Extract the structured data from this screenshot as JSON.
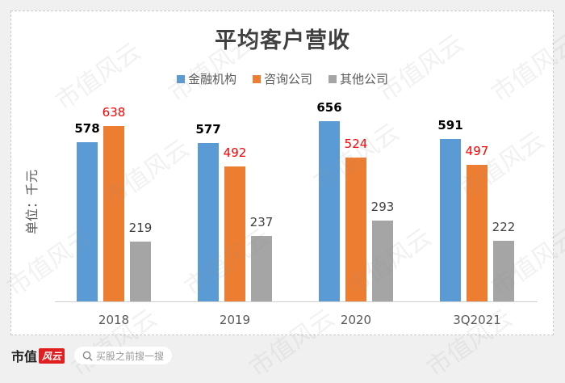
{
  "chart_data": {
    "type": "bar",
    "title": "平均客户营收",
    "ylabel": "单位：千元",
    "xlabel": "",
    "categories": [
      "2018",
      "2019",
      "2020",
      "3Q2021"
    ],
    "series": [
      {
        "name": "金融机构",
        "color": "#5b9bd5",
        "label_color": "#000000",
        "values": [
          578,
          577,
          656,
          591
        ]
      },
      {
        "name": "咨询公司",
        "color": "#ed7d31",
        "label_color": "#ff0000",
        "values": [
          638,
          492,
          524,
          497
        ]
      },
      {
        "name": "其他公司",
        "color": "#a5a5a5",
        "label_color": "#404040",
        "values": [
          219,
          237,
          293,
          222
        ]
      }
    ],
    "legend_position": "top",
    "grid": false,
    "ylim": [
      0,
      700
    ]
  },
  "labels": {
    "s0": [
      "578",
      "577",
      "656",
      "591"
    ],
    "s1": [
      "638",
      "492",
      "524",
      "497"
    ],
    "s2": [
      "219",
      "237",
      "293",
      "222"
    ]
  },
  "watermark": "市值风云",
  "footer": {
    "brand_text": "市值",
    "brand_badge": "风云",
    "search_placeholder": "买股之前搜一搜",
    "search_icon": "search-icon"
  }
}
